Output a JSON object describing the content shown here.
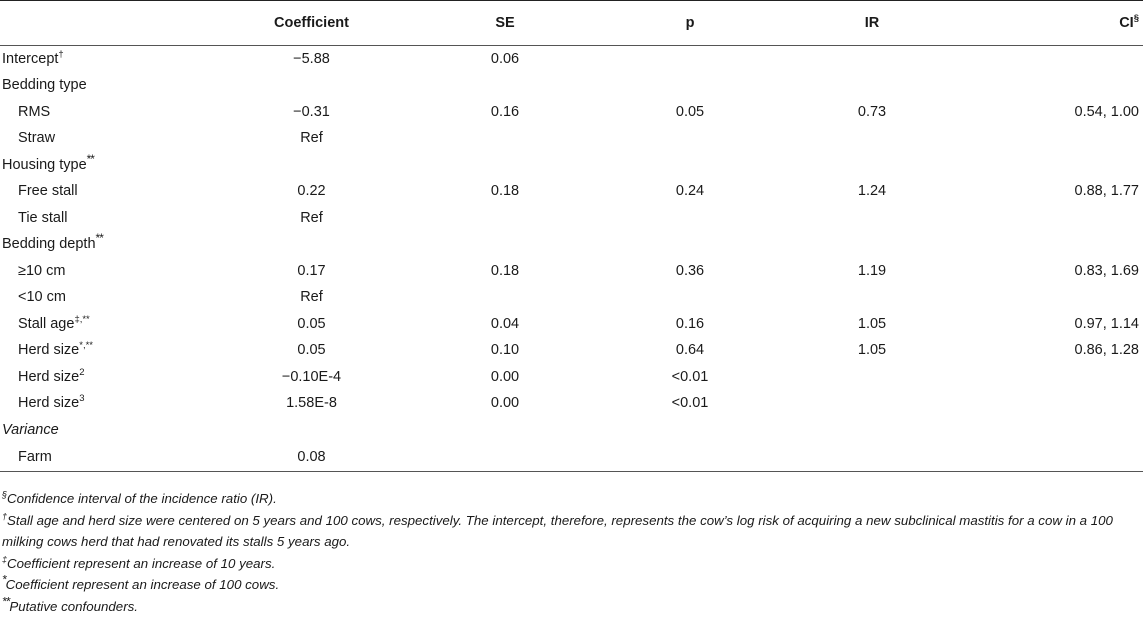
{
  "headers": {
    "blank": "",
    "coefficient": "Coefficient",
    "se": "SE",
    "p": "p",
    "ir": "IR",
    "ci": "CI",
    "ci_mark": "§"
  },
  "rows": [
    {
      "label": "Intercept",
      "mark": "†",
      "coef": "−5.88",
      "se": "0.06",
      "p": "",
      "ir": "",
      "ci": ""
    },
    {
      "label": "Bedding type",
      "mark": "",
      "coef": "",
      "se": "",
      "p": "",
      "ir": "",
      "ci": ""
    },
    {
      "label": "RMS",
      "mark": "",
      "coef": "−0.31",
      "se": "0.16",
      "p": "0.05",
      "ir": "0.73",
      "ci": "0.54, 1.00"
    },
    {
      "label": "Straw",
      "mark": "",
      "coef": "Ref",
      "se": "",
      "p": "",
      "ir": "",
      "ci": ""
    },
    {
      "label": "Housing type",
      "mark": "**",
      "coef": "",
      "se": "",
      "p": "",
      "ir": "",
      "ci": ""
    },
    {
      "label": "Free stall",
      "mark": "",
      "coef": "0.22",
      "se": "0.18",
      "p": "0.24",
      "ir": "1.24",
      "ci": "0.88, 1.77"
    },
    {
      "label": "Tie stall",
      "mark": "",
      "coef": "Ref",
      "se": "",
      "p": "",
      "ir": "",
      "ci": ""
    },
    {
      "label": "Bedding depth",
      "mark": "**",
      "coef": "",
      "se": "",
      "p": "",
      "ir": "",
      "ci": ""
    },
    {
      "label": "≥10 cm",
      "mark": "",
      "coef": "0.17",
      "se": "0.18",
      "p": "0.36",
      "ir": "1.19",
      "ci": "0.83, 1.69"
    },
    {
      "label": "<10 cm",
      "mark": "",
      "coef": "Ref",
      "se": "",
      "p": "",
      "ir": "",
      "ci": ""
    },
    {
      "label": "Stall age",
      "mark": "‡,**",
      "coef": "0.05",
      "se": "0.04",
      "p": "0.16",
      "ir": "1.05",
      "ci": "0.97, 1.14"
    },
    {
      "label": "Herd size",
      "mark": "*,**",
      "coef": "0.05",
      "se": "0.10",
      "p": "0.64",
      "ir": "1.05",
      "ci": "0.86, 1.28"
    },
    {
      "label": "Herd size",
      "mark": "2",
      "coef": "−0.10E-4",
      "se": "0.00",
      "p": "<0.01",
      "ir": "",
      "ci": ""
    },
    {
      "label": "Herd size",
      "mark": "3",
      "coef": "1.58E-8",
      "se": "0.00",
      "p": "<0.01",
      "ir": "",
      "ci": ""
    },
    {
      "label": "Variance",
      "mark": "",
      "coef": "",
      "se": "",
      "p": "",
      "ir": "",
      "ci": ""
    },
    {
      "label": "Farm",
      "mark": "",
      "coef": "0.08",
      "se": "",
      "p": "",
      "ir": "",
      "ci": ""
    }
  ],
  "footnotes": [
    {
      "mark": "§",
      "text": "Confidence interval of the incidence ratio (IR)."
    },
    {
      "mark": "†",
      "text": "Stall age and herd size were centered on 5 years and 100 cows, respectively. The intercept, therefore, represents the cow’s log risk of acquiring a new subclinical mastitis for a cow in a 100 milking cows herd that had renovated its stalls 5 years ago."
    },
    {
      "mark": "‡",
      "text": "Coefficient represent an increase of 10 years."
    },
    {
      "mark": "*",
      "text": "Coefficient represent an increase of 100 cows."
    },
    {
      "mark": "**",
      "text": "Putative confounders."
    }
  ]
}
